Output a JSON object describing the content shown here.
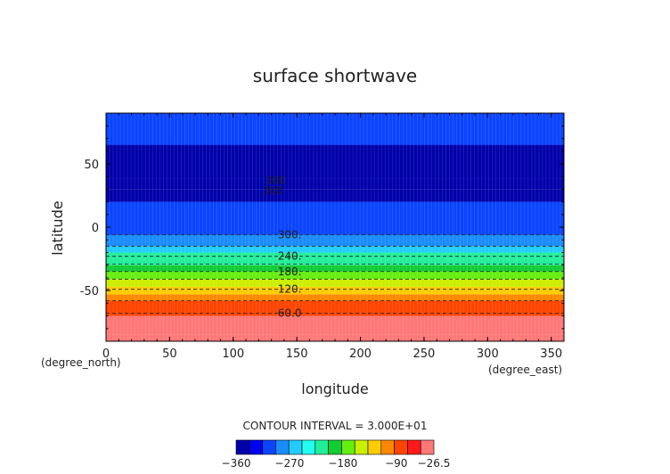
{
  "chart_data": {
    "type": "heatmap",
    "title": "surface shortwave",
    "xlabel": "longitude",
    "ylabel": "latitude",
    "x_unit_label": "(degree_east)",
    "y_unit_label": "(degree_north)",
    "xlim": [
      0,
      360
    ],
    "ylim": [
      -90,
      90
    ],
    "x_ticks": [
      0,
      50,
      100,
      150,
      200,
      250,
      300,
      350
    ],
    "y_ticks": [
      -50,
      0,
      50
    ],
    "contour_interval_text": "CONTOUR INTERVAL = 3.000E+01",
    "bands": [
      {
        "lat_min": -90,
        "lat_max": -85,
        "value": -26.5
      },
      {
        "lat_min": -85,
        "lat_max": -70,
        "value": -45
      },
      {
        "lat_min": -70,
        "lat_max": -58,
        "value": -75
      },
      {
        "lat_min": -58,
        "lat_max": -53,
        "value": -105
      },
      {
        "lat_min": -53,
        "lat_max": -47,
        "value": -120
      },
      {
        "lat_min": -47,
        "lat_max": -41,
        "value": -150
      },
      {
        "lat_min": -41,
        "lat_max": -35,
        "value": -170
      },
      {
        "lat_min": -35,
        "lat_max": -30,
        "value": -195
      },
      {
        "lat_min": -30,
        "lat_max": -25,
        "value": -210
      },
      {
        "lat_min": -25,
        "lat_max": -20,
        "value": -225
      },
      {
        "lat_min": -20,
        "lat_max": -15,
        "value": -255
      },
      {
        "lat_min": -15,
        "lat_max": -6,
        "value": -285
      },
      {
        "lat_min": -6,
        "lat_max": 20,
        "value": -315
      },
      {
        "lat_min": 20,
        "lat_max": 30,
        "value": -345
      },
      {
        "lat_min": 30,
        "lat_max": 38,
        "value": -358
      },
      {
        "lat_min": 38,
        "lat_max": 65,
        "value": -345
      },
      {
        "lat_min": 65,
        "lat_max": 90,
        "value": -315
      }
    ],
    "contour_labels": [
      {
        "text": "360",
        "lon": 125,
        "lat": 37
      },
      {
        "text": "360",
        "lon": 123,
        "lat": 29
      },
      {
        "text": "300.",
        "lon": 135,
        "lat": -6
      },
      {
        "text": "240.",
        "lon": 135,
        "lat": -23
      },
      {
        "text": "180.",
        "lon": 135,
        "lat": -35
      },
      {
        "text": "120.",
        "lon": 135,
        "lat": -49
      },
      {
        "text": "60.0",
        "lon": 135,
        "lat": -68
      }
    ],
    "dashed_contours_lat": [
      -68,
      -58,
      -49,
      -41,
      -35,
      -29,
      -23,
      -15,
      -6
    ],
    "colorbar": {
      "min": -360,
      "max": -26.5,
      "tick_labels": [
        "−360",
        "−270",
        "−180",
        "−90",
        "−26.5"
      ],
      "tick_values": [
        -360,
        -270,
        -180,
        -90,
        -26.5
      ],
      "colors": [
        "#0000aa",
        "#0000ee",
        "#0a44ff",
        "#1a8cff",
        "#22ccff",
        "#22ffee",
        "#22ee99",
        "#11cc33",
        "#66ee11",
        "#ccee00",
        "#ffcc00",
        "#ff8800",
        "#ff4400",
        "#ff1a1a",
        "#ff7777"
      ]
    }
  }
}
